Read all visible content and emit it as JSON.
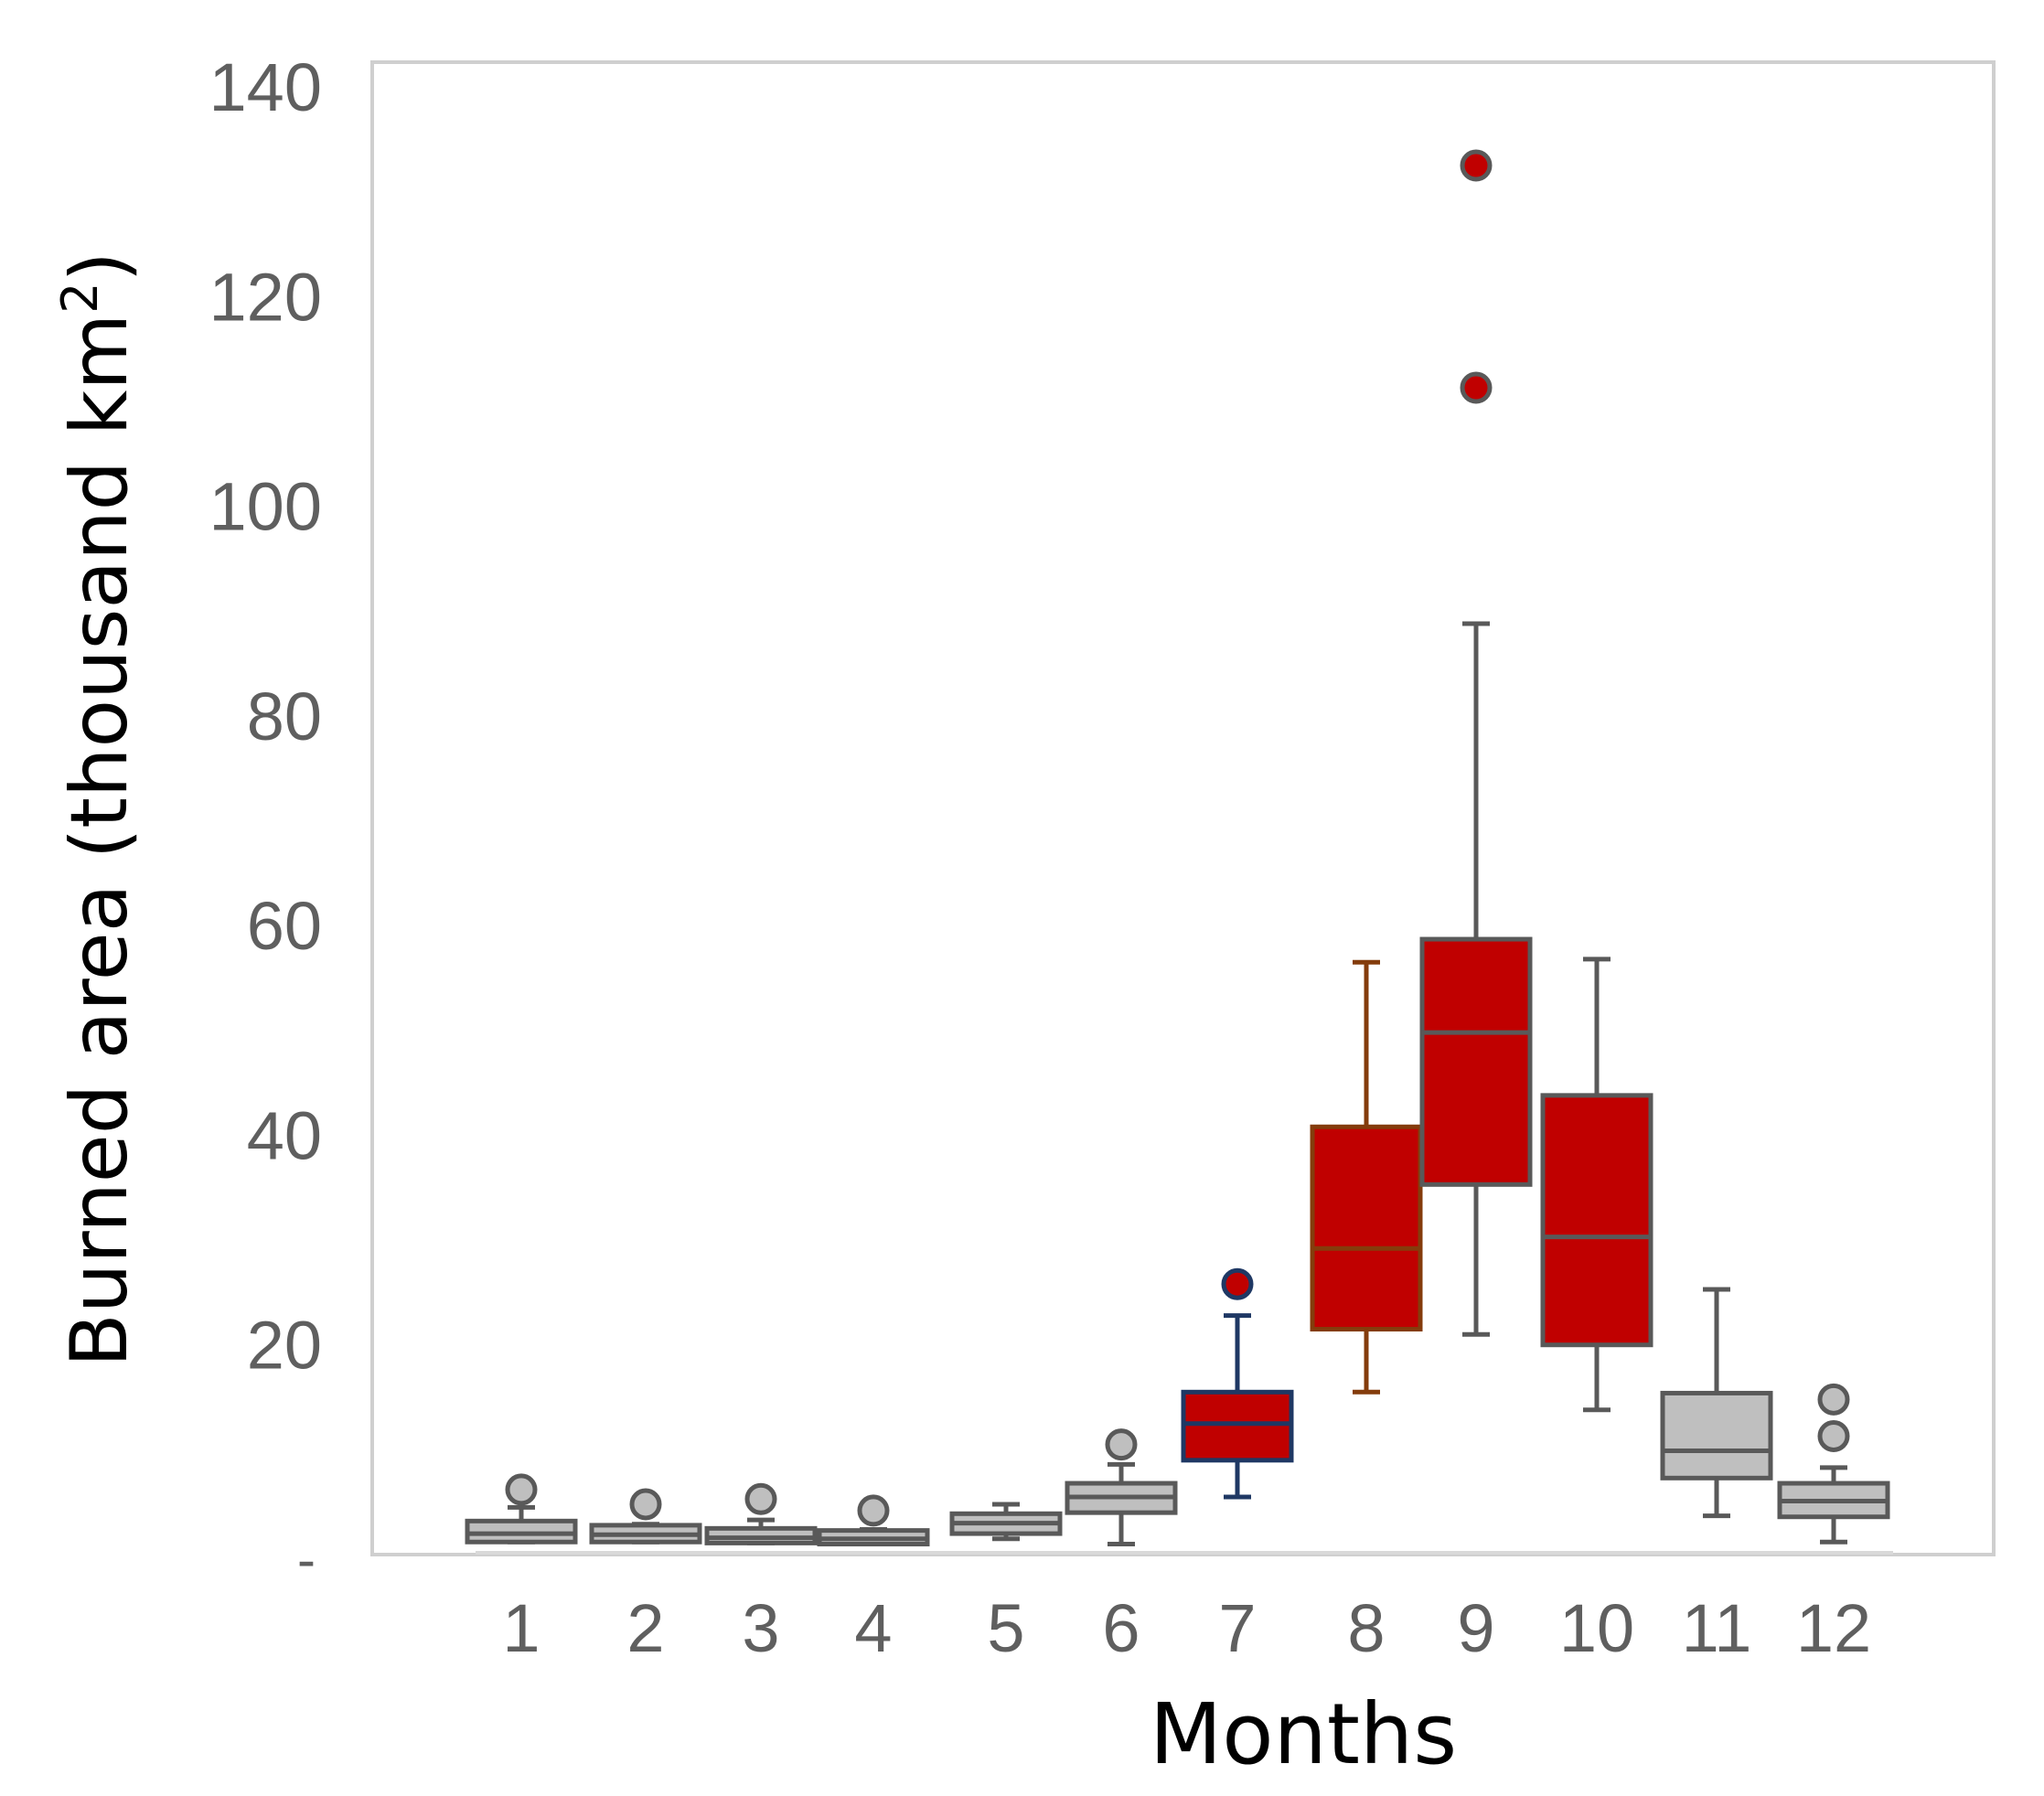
{
  "chart_data": {
    "type": "box",
    "title": "",
    "xlabel": "Months",
    "ylabel": "Burned area (thousand km",
    "ylabel_superscript": "2",
    "ylabel_close": ")",
    "ylim": [
      0,
      140
    ],
    "yticks": [
      {
        "value": 0,
        "label": "-"
      },
      {
        "value": 20,
        "label": "20"
      },
      {
        "value": 40,
        "label": "40"
      },
      {
        "value": 60,
        "label": "60"
      },
      {
        "value": 80,
        "label": "80"
      },
      {
        "value": 100,
        "label": "100"
      },
      {
        "value": 120,
        "label": "120"
      },
      {
        "value": 140,
        "label": "140"
      }
    ],
    "grid": false,
    "categories": [
      "1",
      "2",
      "3",
      "4",
      "5",
      "6",
      "7",
      "8",
      "9",
      "10",
      "11",
      "12"
    ],
    "boxes": [
      {
        "month": "1",
        "whisker_low": 1.2,
        "q1": 1.2,
        "median": 2.0,
        "q3": 3.2,
        "whisker_high": 4.5,
        "outliers": [
          6.2
        ],
        "fill": "#bfbfbf",
        "edge": "#595959",
        "flier_fill": "#bfbfbf"
      },
      {
        "month": "2",
        "whisker_low": 1.2,
        "q1": 1.2,
        "median": 1.9,
        "q3": 2.8,
        "whisker_high": 2.9,
        "outliers": [
          4.8
        ],
        "fill": "#bfbfbf",
        "edge": "#595959",
        "flier_fill": "#bfbfbf"
      },
      {
        "month": "3",
        "whisker_low": 1.1,
        "q1": 1.1,
        "median": 1.6,
        "q3": 2.5,
        "whisker_high": 3.3,
        "outliers": [
          5.3
        ],
        "fill": "#bfbfbf",
        "edge": "#595959",
        "flier_fill": "#bfbfbf"
      },
      {
        "month": "4",
        "whisker_low": 1.0,
        "q1": 1.0,
        "median": 1.5,
        "q3": 2.3,
        "whisker_high": 2.4,
        "outliers": [
          4.2
        ],
        "fill": "#bfbfbf",
        "edge": "#595959",
        "flier_fill": "#bfbfbf"
      },
      {
        "month": "5",
        "whisker_low": 1.5,
        "q1": 2.0,
        "median": 3.0,
        "q3": 3.9,
        "whisker_high": 4.8,
        "outliers": [],
        "fill": "#bfbfbf",
        "edge": "#595959",
        "flier_fill": "#bfbfbf"
      },
      {
        "month": "6",
        "whisker_low": 1.0,
        "q1": 4.0,
        "median": 5.5,
        "q3": 6.8,
        "whisker_high": 8.6,
        "outliers": [
          10.5
        ],
        "fill": "#bfbfbf",
        "edge": "#595959",
        "flier_fill": "#bfbfbf"
      },
      {
        "month": "7",
        "whisker_low": 5.5,
        "q1": 9.0,
        "median": 12.5,
        "q3": 15.5,
        "whisker_high": 22.8,
        "outliers": [
          25.8
        ],
        "fill": "#c00000",
        "edge": "#1f3864",
        "flier_fill": "#c00000"
      },
      {
        "month": "8",
        "whisker_low": 15.5,
        "q1": 21.5,
        "median": 29.2,
        "q3": 40.8,
        "whisker_high": 56.5,
        "outliers": [],
        "fill": "#c00000",
        "edge": "#843c0c",
        "flier_fill": "#c00000"
      },
      {
        "month": "9",
        "whisker_low": 21.0,
        "q1": 35.3,
        "median": 49.8,
        "q3": 58.7,
        "whisker_high": 88.8,
        "outliers": [
          111.3,
          132.5
        ],
        "fill": "#c00000",
        "edge": "#595959",
        "flier_fill": "#c00000"
      },
      {
        "month": "10",
        "whisker_low": 13.8,
        "q1": 20.0,
        "median": 30.3,
        "q3": 43.8,
        "whisker_high": 56.8,
        "outliers": [],
        "fill": "#c00000",
        "edge": "#595959",
        "flier_fill": "#c00000"
      },
      {
        "month": "11",
        "whisker_low": 3.7,
        "q1": 7.3,
        "median": 9.9,
        "q3": 15.4,
        "whisker_high": 25.3,
        "outliers": [],
        "fill": "#bfbfbf",
        "edge": "#595959",
        "flier_fill": "#bfbfbf"
      },
      {
        "month": "12",
        "whisker_low": 1.2,
        "q1": 3.6,
        "median": 5.1,
        "q3": 6.8,
        "whisker_high": 8.3,
        "outliers": [
          11.3,
          14.8
        ],
        "fill": "#bfbfbf",
        "edge": "#595959",
        "flier_fill": "#bfbfbf"
      }
    ]
  }
}
